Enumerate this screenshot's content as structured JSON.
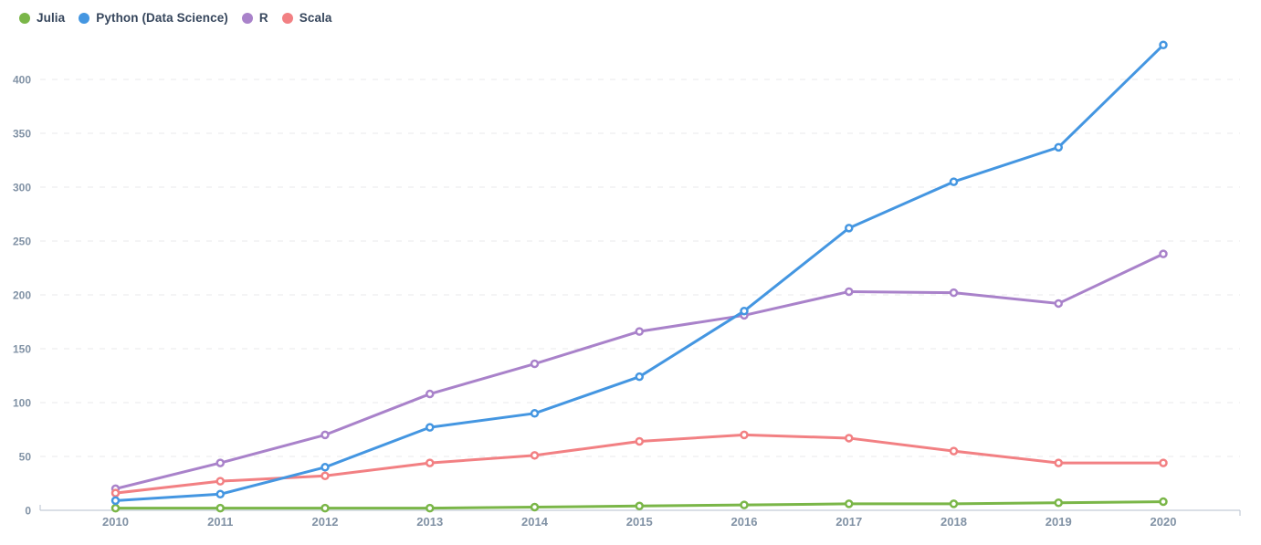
{
  "legend": {
    "items": [
      {
        "label": "Julia",
        "color": "#7ab648"
      },
      {
        "label": "Python (Data Science)",
        "color": "#4496e1"
      },
      {
        "label": "R",
        "color": "#a982ca"
      },
      {
        "label": "Scala",
        "color": "#f28083"
      }
    ]
  },
  "chart_data": {
    "type": "line",
    "x": [
      2010,
      2011,
      2012,
      2013,
      2014,
      2015,
      2016,
      2017,
      2018,
      2019,
      2020
    ],
    "series": [
      {
        "name": "Julia",
        "color": "#7ab648",
        "values": [
          2,
          2,
          2,
          2,
          3,
          4,
          5,
          6,
          6,
          7,
          8
        ]
      },
      {
        "name": "Python (Data Science)",
        "color": "#4496e1",
        "values": [
          9,
          15,
          40,
          77,
          90,
          124,
          185,
          262,
          305,
          337,
          432
        ]
      },
      {
        "name": "R",
        "color": "#a982ca",
        "values": [
          20,
          44,
          70,
          108,
          136,
          166,
          181,
          203,
          202,
          192,
          238
        ]
      },
      {
        "name": "Scala",
        "color": "#f28083",
        "values": [
          16,
          27,
          32,
          44,
          51,
          64,
          70,
          67,
          55,
          44,
          44
        ]
      }
    ],
    "yticks": [
      0,
      50,
      100,
      150,
      200,
      250,
      300,
      350,
      400
    ],
    "ylim": [
      0,
      445
    ],
    "title": "",
    "xlabel": "",
    "ylabel": "",
    "grid": "horizontal-dashed",
    "legend_position": "top-left",
    "marker": "open-circle",
    "colors": {
      "axis_text": "#8192a5",
      "grid_line": "#e9e9eb",
      "axis_line": "#c3ccd7",
      "marker_fill": "#ffffff",
      "background": "#ffffff"
    }
  }
}
